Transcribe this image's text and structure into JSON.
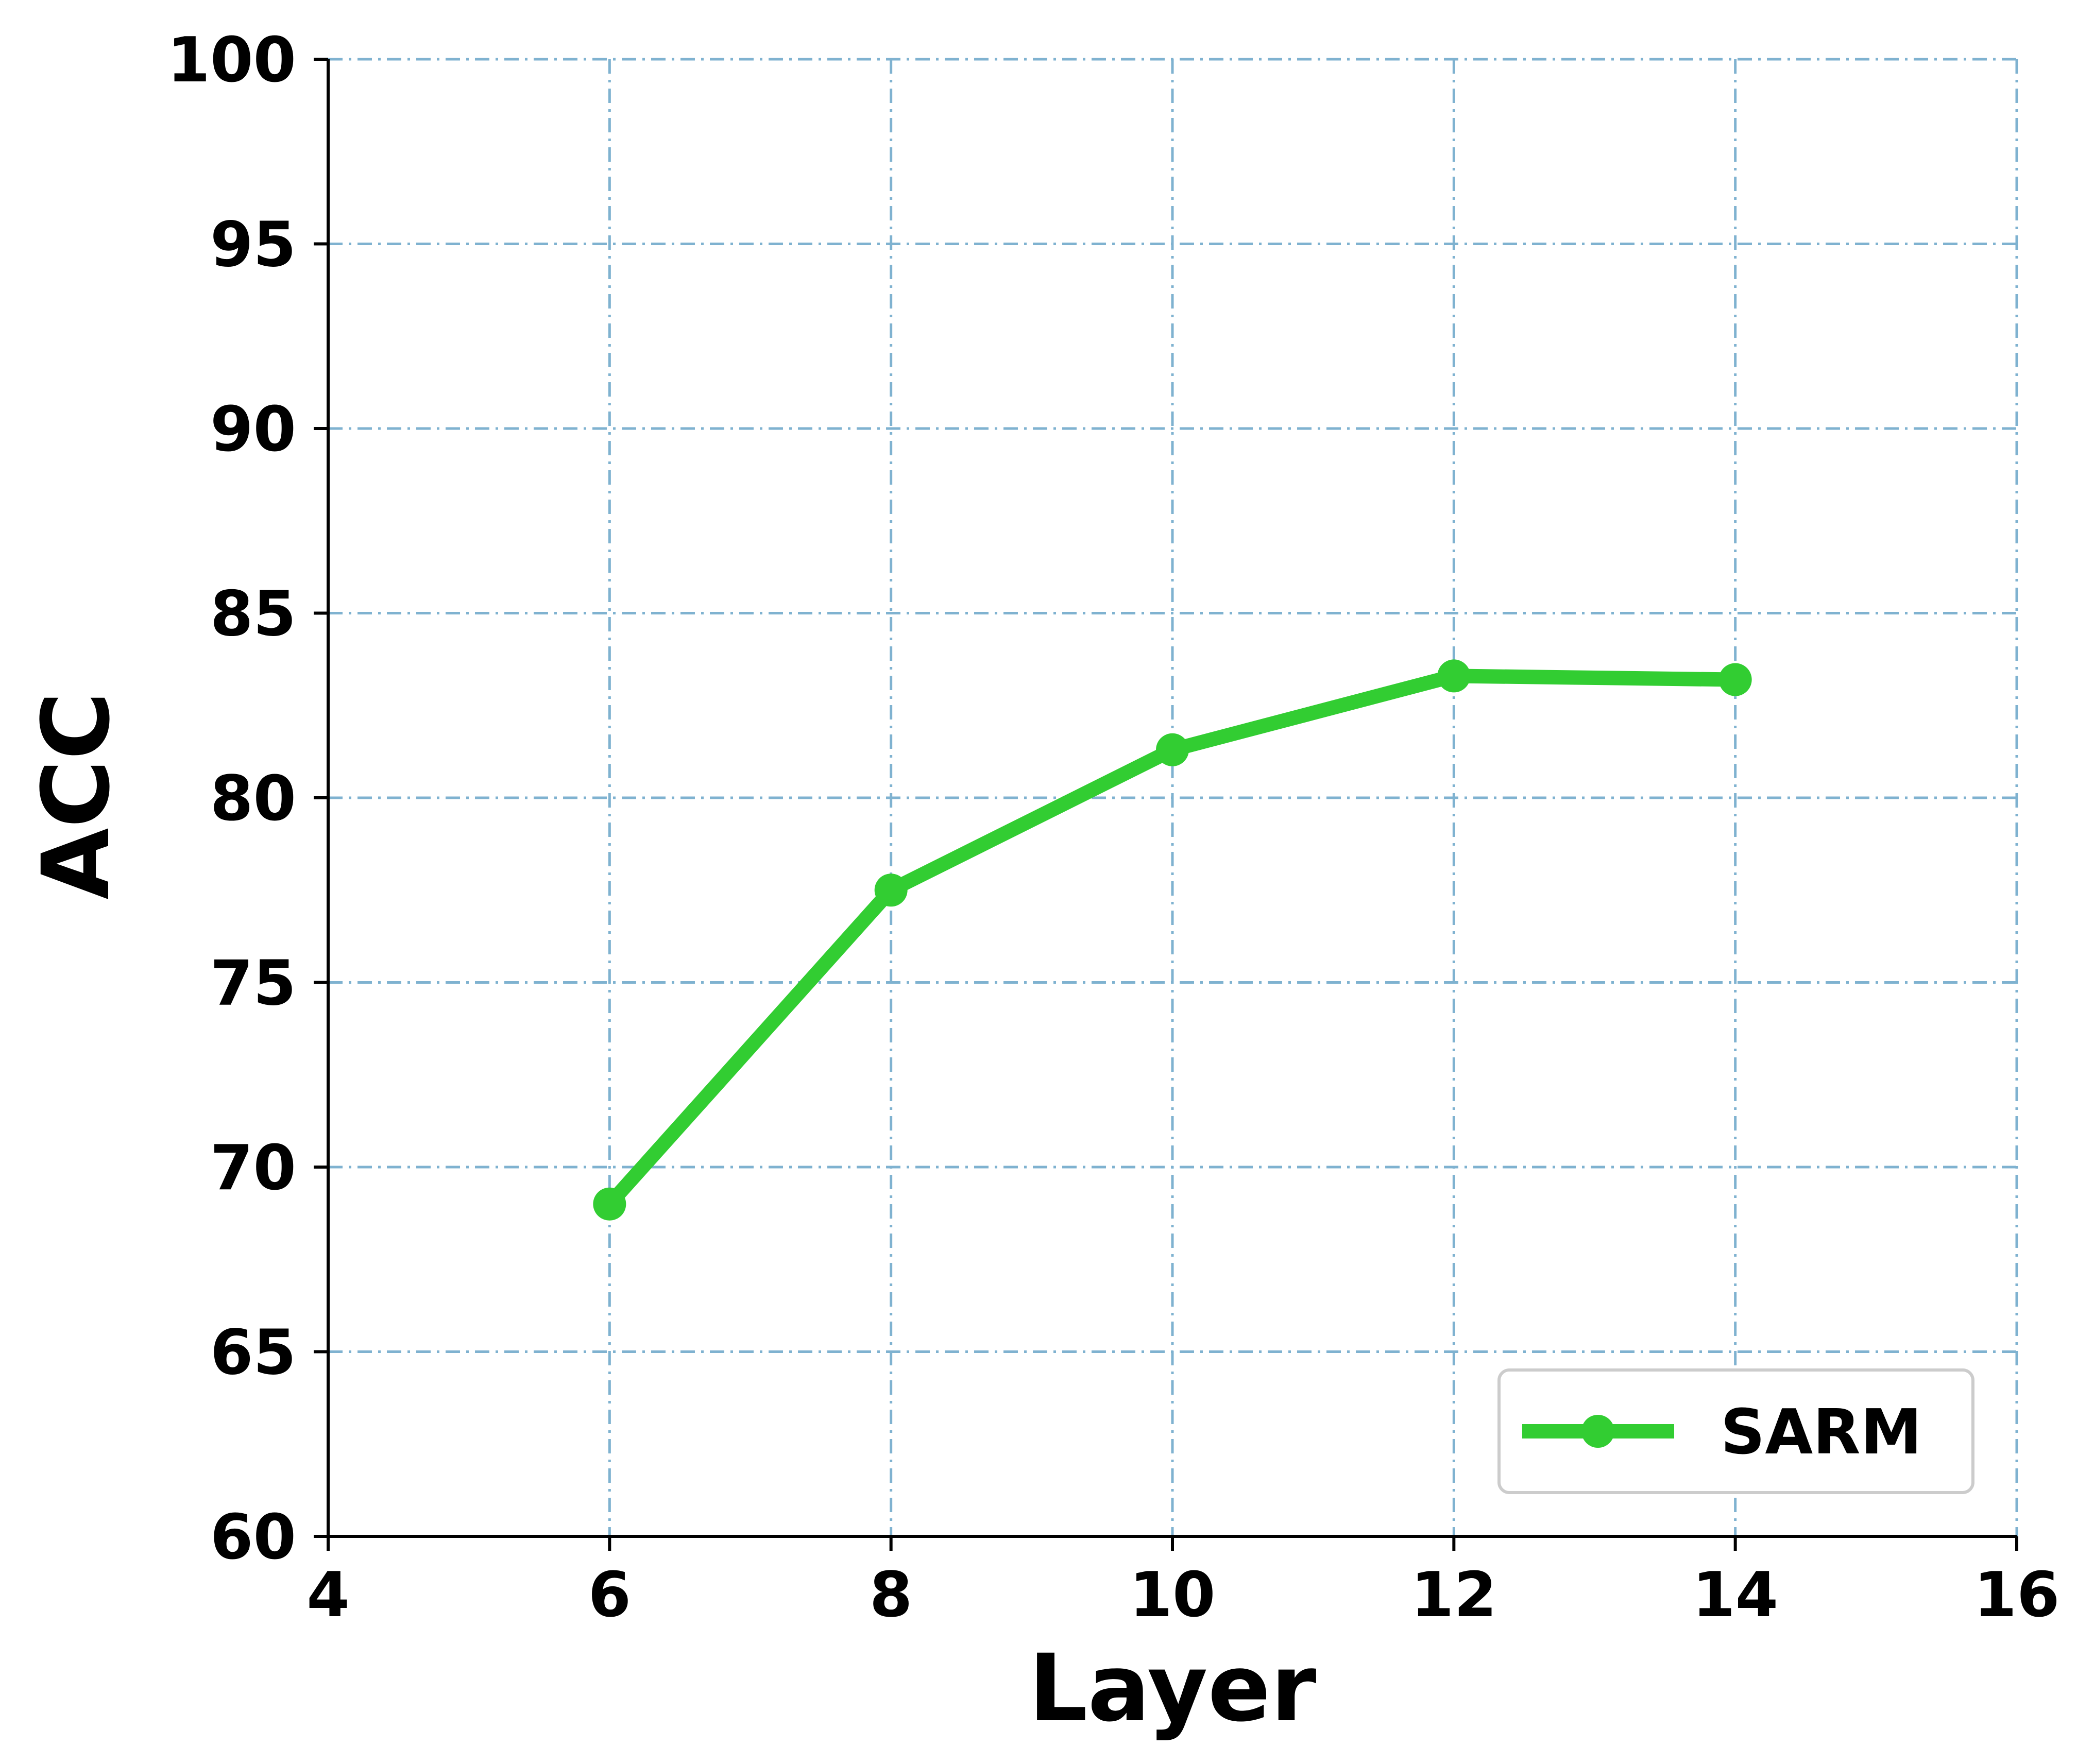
{
  "chart_data": {
    "type": "line",
    "title": "",
    "xlabel": "Layer",
    "ylabel": "ACC",
    "xlim": [
      4,
      16
    ],
    "ylim": [
      60,
      100
    ],
    "xticks": [
      "4",
      "6",
      "8",
      "10",
      "12",
      "14",
      "16"
    ],
    "yticks": [
      "60",
      "65",
      "70",
      "75",
      "80",
      "85",
      "90",
      "95",
      "100"
    ],
    "grid": true,
    "legend_position": "lower-right",
    "series": [
      {
        "name": "SARM",
        "color": "#32CD32",
        "x": [
          6,
          8,
          10,
          12,
          14
        ],
        "y": [
          69.0,
          77.5,
          81.3,
          83.3,
          83.2
        ]
      }
    ],
    "colors": {
      "grid": "#7FB2D0",
      "axis": "#000000"
    }
  }
}
